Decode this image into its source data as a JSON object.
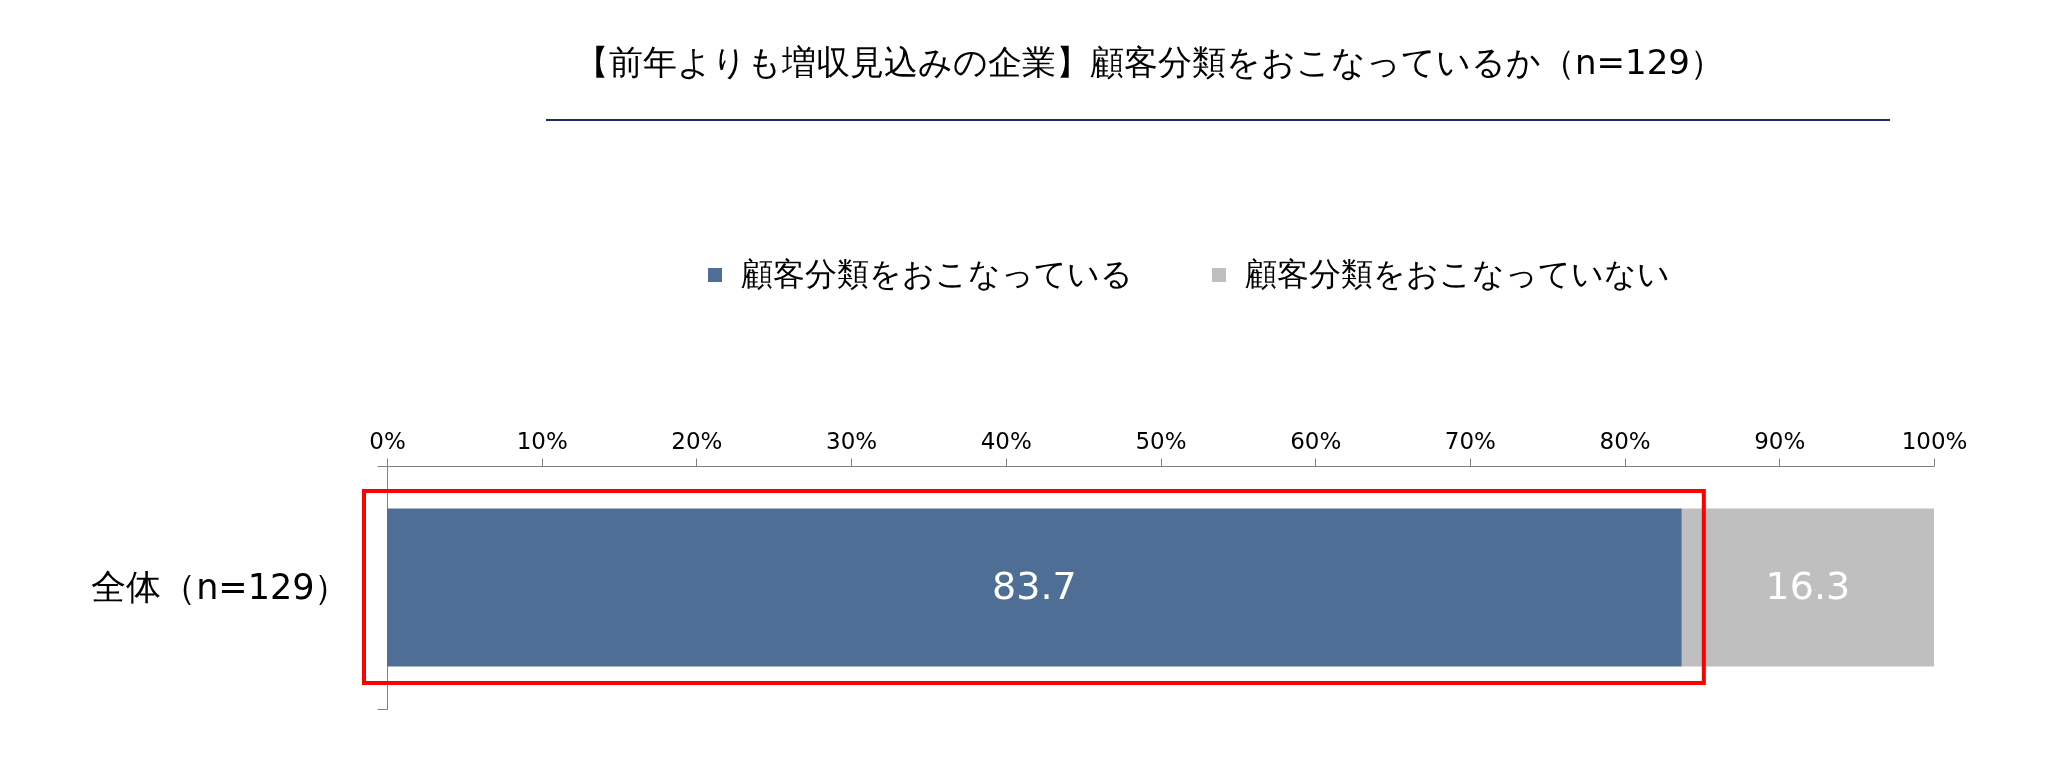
{
  "chart_data": {
    "type": "bar",
    "title": "【前年よりも増収見込みの企業】顧客分類をおこなっているか（n=129）",
    "orientation": "horizontal",
    "stacked": true,
    "categories": [
      "全体（n=129）"
    ],
    "series": [
      {
        "name": "顧客分類をおこなっている",
        "color": "#4e6e96",
        "values": [
          83.7
        ]
      },
      {
        "name": "顧客分類をおこなっていない",
        "color": "#bfbfbf",
        "values": [
          16.3
        ]
      }
    ],
    "xlim": [
      0,
      100
    ],
    "xticks": [
      {
        "value": 0,
        "label": "0%"
      },
      {
        "value": 10,
        "label": "10%"
      },
      {
        "value": 20,
        "label": "20%"
      },
      {
        "value": 30,
        "label": "30%"
      },
      {
        "value": 40,
        "label": "40%"
      },
      {
        "value": 50,
        "label": "50%"
      },
      {
        "value": 60,
        "label": "60%"
      },
      {
        "value": 70,
        "label": "70%"
      },
      {
        "value": 80,
        "label": "80%"
      },
      {
        "value": 90,
        "label": "90%"
      },
      {
        "value": 100,
        "label": "100%"
      }
    ],
    "data_labels": true,
    "legend": "top",
    "grid": false
  }
}
